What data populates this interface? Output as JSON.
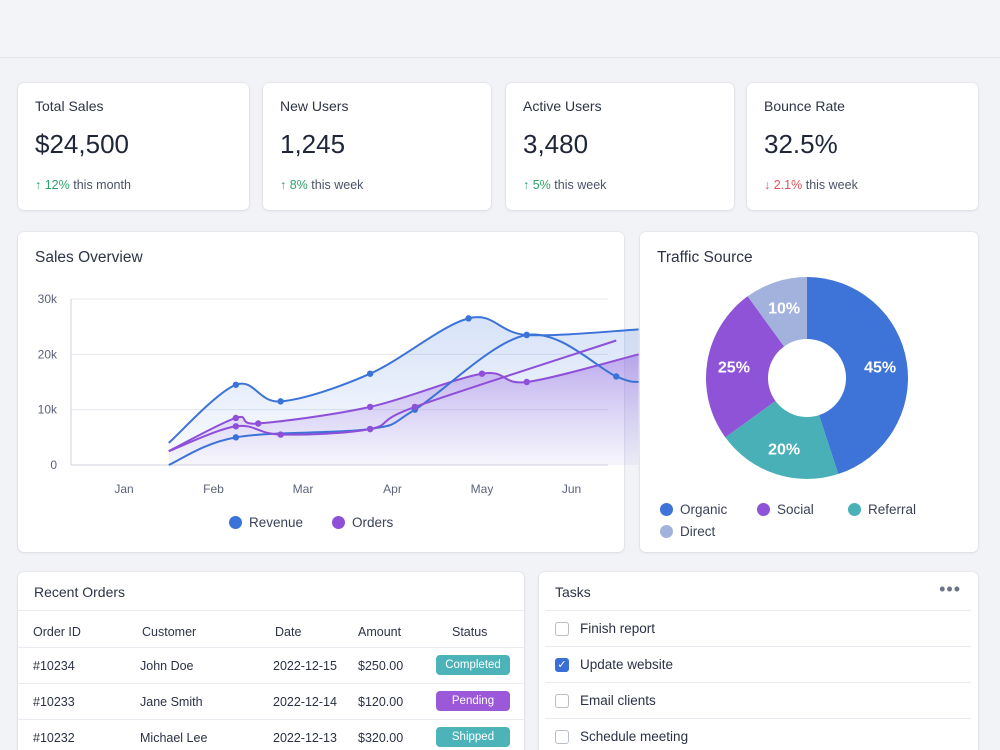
{
  "stats": [
    {
      "label": "Total Sales",
      "value": "$24,500",
      "arrow": "↑",
      "change": "12%",
      "period": "this month",
      "direction": "up"
    },
    {
      "label": "New Users",
      "value": "1,245",
      "arrow": "↑",
      "change": "8%",
      "period": "this week",
      "direction": "up"
    },
    {
      "label": "Active Users",
      "value": "3,480",
      "arrow": "↑",
      "change": "5%",
      "period": "this week",
      "direction": "up"
    },
    {
      "label": "Bounce Rate",
      "value": "32.5%",
      "arrow": "↓",
      "change": "2.1%",
      "period": "this week",
      "direction": "down"
    }
  ],
  "sales_overview": {
    "title": "Sales Overview",
    "legend": {
      "revenue": "Revenue",
      "orders": "Orders"
    }
  },
  "traffic_source": {
    "title": "Traffic Source",
    "legend": {
      "organic": "Organic",
      "social": "Social",
      "referral": "Referral",
      "direct": "Direct"
    }
  },
  "chart_data": [
    {
      "type": "line",
      "title": "Sales Overview",
      "x_ticks": [
        "Jan",
        "Feb",
        "Mar",
        "Apr",
        "May",
        "Jun"
      ],
      "y_ticks": [
        "0",
        "10k",
        "20k",
        "30k"
      ],
      "ylim": [
        0,
        30000
      ],
      "grid": true,
      "legend_position": "bottom",
      "series": [
        {
          "name": "Revenue",
          "color": "#3b73d9",
          "fill": true,
          "points": [
            [
              0.5,
              4000
            ],
            [
              1.25,
              14500
            ],
            [
              1.75,
              11500
            ],
            [
              2.75,
              16500
            ],
            [
              3.85,
              26500
            ],
            [
              4.5,
              23500
            ],
            [
              5.75,
              24500
            ]
          ]
        },
        {
          "name": "Orders",
          "color": "#8e4fd9",
          "fill": true,
          "points": [
            [
              0.5,
              2500
            ],
            [
              1.25,
              8500
            ],
            [
              1.5,
              7500
            ],
            [
              2.75,
              10500
            ],
            [
              4.0,
              16500
            ],
            [
              4.5,
              15000
            ],
            [
              5.75,
              20000
            ]
          ]
        },
        {
          "name": "",
          "color": "#3b73d9",
          "fill": false,
          "points": [
            [
              0.5,
              0
            ],
            [
              1.25,
              5000
            ],
            [
              2.75,
              6500
            ],
            [
              3.25,
              10000
            ],
            [
              4.5,
              23500
            ],
            [
              5.5,
              16000
            ],
            [
              5.75,
              15000
            ]
          ]
        },
        {
          "name": "",
          "color": "#8e4fd9",
          "fill": false,
          "points": [
            [
              0.5,
              2500
            ],
            [
              1.25,
              7000
            ],
            [
              1.75,
              5500
            ],
            [
              2.75,
              6500
            ],
            [
              3.25,
              10500
            ],
            [
              5.5,
              22500
            ]
          ]
        }
      ]
    },
    {
      "type": "pie",
      "title": "Traffic Source",
      "donut": true,
      "slices": [
        {
          "name": "Organic",
          "value": 45,
          "label": "45%",
          "color": "#3e74d8"
        },
        {
          "name": "Referral",
          "value": 20,
          "label": "20%",
          "color": "#4ab0b8"
        },
        {
          "name": "Social",
          "value": 25,
          "label": "25%",
          "color": "#8e53d6"
        },
        {
          "name": "Direct",
          "value": 10,
          "label": "10%",
          "color": "#a3b1dd"
        }
      ]
    }
  ],
  "orders": {
    "title": "Recent Orders",
    "headers": [
      "Order ID",
      "Customer",
      "Date",
      "Amount",
      "Status"
    ],
    "rows": [
      {
        "id": "#10234",
        "customer": "John Doe",
        "date": "2022-12-15",
        "amount": "$250.00",
        "status": "Completed",
        "status_color": "#4cb3b8"
      },
      {
        "id": "#10233",
        "customer": "Jane Smith",
        "date": "2022-12-14",
        "amount": "$120.00",
        "status": "Pending",
        "status_color": "#9b59d9"
      },
      {
        "id": "#10232",
        "customer": "Michael Lee",
        "date": "2022-12-13",
        "amount": "$320.00",
        "status": "Shipped",
        "status_color": "#4cb3b8"
      }
    ]
  },
  "tasks": {
    "title": "Tasks",
    "items": [
      {
        "label": "Finish report",
        "checked": false
      },
      {
        "label": "Update website",
        "checked": true
      },
      {
        "label": "Email clients",
        "checked": false
      },
      {
        "label": "Schedule meeting",
        "checked": false
      }
    ]
  }
}
